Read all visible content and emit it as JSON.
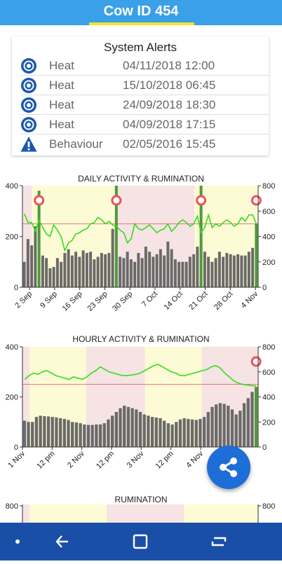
{
  "header": {
    "title": "Cow ID 454"
  },
  "alerts": {
    "title": "System Alerts",
    "items": [
      {
        "icon": "heat-target-icon",
        "type": "Heat",
        "time": "04/11/2018 12:00"
      },
      {
        "icon": "heat-target-icon",
        "type": "Heat",
        "time": "15/10/2018 06:45"
      },
      {
        "icon": "heat-target-icon",
        "type": "Heat",
        "time": "24/09/2018 18:30"
      },
      {
        "icon": "heat-target-icon",
        "type": "Heat",
        "time": "04/09/2018 17:15"
      },
      {
        "icon": "warning-icon",
        "type": "Behaviour",
        "time": "02/05/2016 15:45"
      }
    ]
  },
  "colors": {
    "accent": "#3aa0e8",
    "underline": "#f3e62a",
    "activity_bar": "#6a6a6a",
    "rumination_line": "#33dd22",
    "heat_bar": "#4e9a38",
    "heat_marker": "#e8545a",
    "band_yellow": "#fdfbd5",
    "band_pink": "#f6e3e3",
    "navbar": "#1a4fa8",
    "fab": "#1d6ed6"
  },
  "chart_data": [
    {
      "type": "bar",
      "title": "DAILY ACTIVITY & RUMINATION",
      "x_ticks": [
        "2 Sep",
        "9 Sep",
        "16 Sep",
        "23 Sep",
        "30 Sep",
        "7 Oct",
        "14 Oct",
        "21 Oct",
        "28 Oct",
        "4 Nov"
      ],
      "ylim_left": [
        0,
        400
      ],
      "yticks_left": [
        "0",
        "200",
        "400"
      ],
      "ylim_right": [
        0,
        800
      ],
      "yticks_right": [
        "0",
        "200",
        "400",
        "600",
        "800"
      ],
      "threshold_right": 500,
      "activity": [
        100,
        190,
        165,
        240,
        380,
        125,
        115,
        75,
        80,
        115,
        100,
        135,
        150,
        125,
        140,
        120,
        145,
        135,
        140,
        110,
        120,
        135,
        130,
        135,
        230,
        400,
        120,
        115,
        140,
        110,
        100,
        135,
        115,
        160,
        140,
        120,
        130,
        150,
        125,
        180,
        150,
        110,
        100,
        100,
        100,
        120,
        130,
        160,
        400,
        140,
        120,
        100,
        115,
        140,
        120,
        135,
        130,
        125,
        130,
        125,
        125,
        140,
        155,
        250
      ],
      "rumination": [
        580,
        510,
        510,
        440,
        530,
        470,
        420,
        400,
        490,
        450,
        400,
        290,
        350,
        370,
        420,
        430,
        450,
        460,
        500,
        510,
        550,
        530,
        500,
        520,
        490,
        480,
        450,
        430,
        350,
        380,
        500,
        460,
        450,
        470,
        490,
        460,
        430,
        450,
        460,
        500,
        440,
        470,
        510,
        530,
        510,
        480,
        500,
        560,
        430,
        470,
        570,
        470,
        500,
        480,
        510,
        530,
        510,
        480,
        500,
        550,
        520,
        570,
        570,
        500
      ],
      "heat_days": [
        4,
        25,
        48,
        63
      ]
    },
    {
      "type": "bar",
      "title": "HOURLY ACTIVITY & RUMINATION",
      "x_ticks": [
        "1 Nov",
        "12 pm",
        "2 Nov",
        "12 pm",
        "3 Nov",
        "12 pm",
        "4 Nov"
      ],
      "ylim_left": [
        0,
        400
      ],
      "yticks_left": [
        "0",
        "200",
        "400"
      ],
      "ylim_right": [
        0,
        800
      ],
      "yticks_right": [
        "0",
        "200",
        "400",
        "600",
        "800"
      ],
      "threshold_right": 500,
      "activity": [
        105,
        100,
        100,
        120,
        125,
        123,
        122,
        120,
        118,
        115,
        112,
        108,
        100,
        98,
        95,
        90,
        88,
        88,
        90,
        90,
        95,
        110,
        125,
        140,
        155,
        165,
        160,
        155,
        150,
        140,
        130,
        125,
        120,
        118,
        115,
        105,
        95,
        90,
        100,
        110,
        115,
        112,
        110,
        108,
        112,
        120,
        140,
        160,
        170,
        175,
        172,
        165,
        150,
        130,
        145,
        175,
        195,
        220,
        240
      ],
      "rumination": [
        540,
        570,
        590,
        580,
        600,
        610,
        590,
        570,
        560,
        550,
        540,
        560,
        550,
        540,
        560,
        590,
        610,
        640,
        620,
        600,
        590,
        580,
        570,
        570,
        575,
        580,
        590,
        610,
        630,
        650,
        660,
        640,
        620,
        600,
        590,
        570,
        570,
        580,
        590,
        600,
        610,
        620,
        640,
        650,
        630,
        590,
        560,
        530,
        510,
        500,
        495,
        490,
        488
      ],
      "heat_hour": 58
    },
    {
      "type": "line",
      "title": "RUMINATION",
      "yticks_left": [
        "800"
      ],
      "yticks_right": [
        "800"
      ]
    }
  ]
}
